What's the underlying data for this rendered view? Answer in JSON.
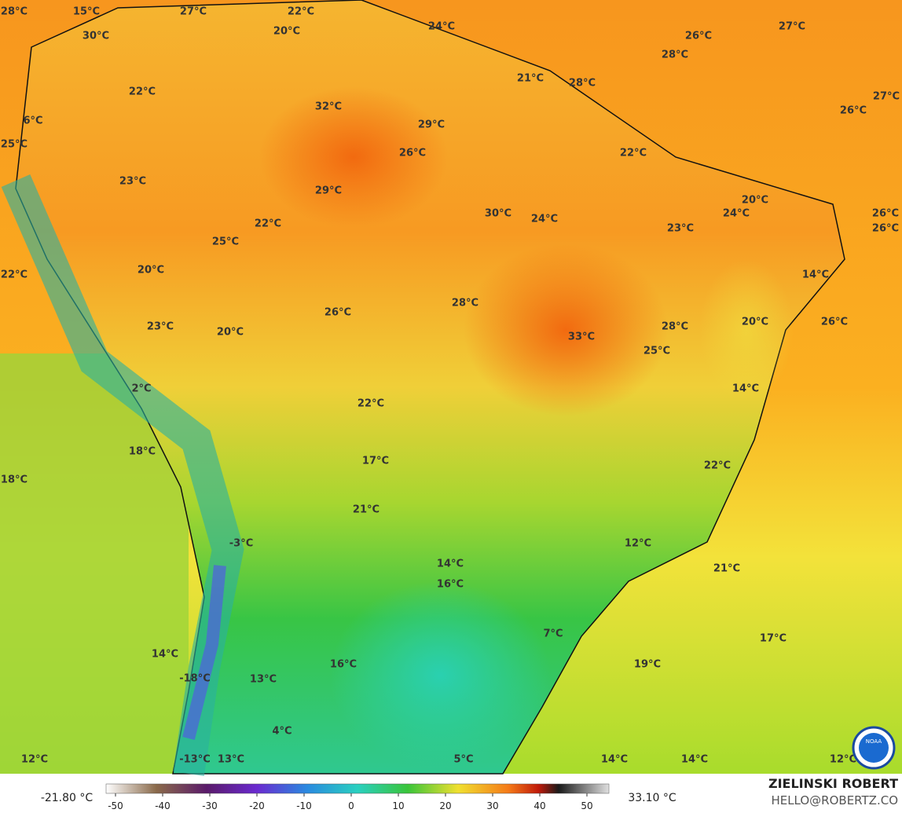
{
  "map": {
    "labels": [
      "28°C",
      "15°C",
      "30°C",
      "27°C",
      "22°C",
      "20°C",
      "24°C",
      "26°C",
      "27°C",
      "28°C",
      "21°C",
      "28°C",
      "22°C",
      "32°C",
      "27°C",
      "26°C",
      "6°C",
      "29°C",
      "25°C",
      "26°C",
      "22°C",
      "23°C",
      "29°C",
      "20°C",
      "30°C",
      "24°C",
      "24°C",
      "26°C",
      "22°C",
      "26°C",
      "23°C",
      "25°C",
      "20°C",
      "22°C",
      "14°C",
      "28°C",
      "26°C",
      "20°C",
      "26°C",
      "23°C",
      "20°C",
      "28°C",
      "33°C",
      "25°C",
      "2°C",
      "14°C",
      "22°C",
      "18°C",
      "17°C",
      "22°C",
      "18°C",
      "21°C",
      "12°C",
      "-3°C",
      "21°C",
      "14°C",
      "16°C",
      "7°C",
      "17°C",
      "14°C",
      "16°C",
      "19°C",
      "-18°C",
      "13°C",
      "4°C",
      "12°C",
      "-13°C",
      "13°C",
      "5°C",
      "14°C",
      "14°C",
      "12°C"
    ]
  },
  "colorbar": {
    "min_label": "-21.80 °C",
    "max_label": "33.10 °C",
    "ticks": [
      -50,
      -40,
      -30,
      -20,
      -10,
      0,
      10,
      20,
      30,
      40,
      50
    ]
  },
  "credit": {
    "name": "ZIELINSKI ROBERT",
    "contact": "HELLO@ROBERTZ.CO",
    "logo": "NOAA"
  }
}
